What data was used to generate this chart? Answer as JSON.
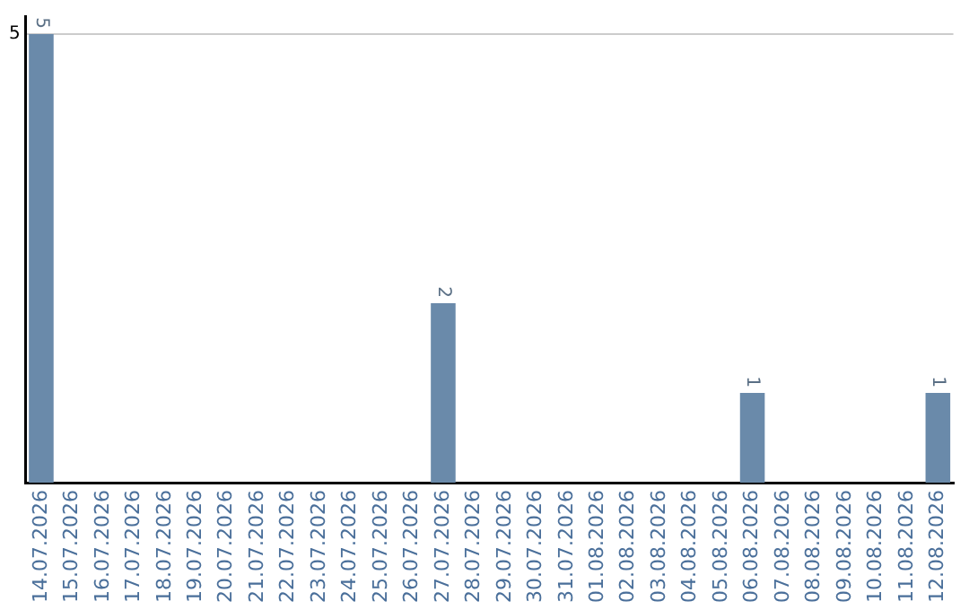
{
  "chart_data": {
    "type": "bar",
    "categories": [
      "14.07.2026",
      "15.07.2026",
      "16.07.2026",
      "17.07.2026",
      "18.07.2026",
      "19.07.2026",
      "20.07.2026",
      "21.07.2026",
      "22.07.2026",
      "23.07.2026",
      "24.07.2026",
      "25.07.2026",
      "26.07.2026",
      "27.07.2026",
      "28.07.2026",
      "29.07.2026",
      "30.07.2026",
      "31.07.2026",
      "01.08.2026",
      "02.08.2026",
      "03.08.2026",
      "04.08.2026",
      "05.08.2026",
      "06.08.2026",
      "07.08.2026",
      "08.08.2026",
      "09.08.2026",
      "10.08.2026",
      "11.08.2026",
      "12.08.2026"
    ],
    "values": [
      5,
      0,
      0,
      0,
      0,
      0,
      0,
      0,
      0,
      0,
      0,
      0,
      0,
      2,
      0,
      0,
      0,
      0,
      0,
      0,
      0,
      0,
      0,
      1,
      0,
      0,
      0,
      0,
      0,
      1
    ],
    "value_labels": [
      "5",
      null,
      null,
      null,
      null,
      null,
      null,
      null,
      null,
      null,
      null,
      null,
      null,
      "2",
      null,
      null,
      null,
      null,
      null,
      null,
      null,
      null,
      null,
      "1",
      null,
      null,
      null,
      null,
      null,
      "1"
    ],
    "color": "#6a8aaa",
    "ylim": [
      0,
      5.2
    ],
    "yticks": [
      5
    ],
    "grid": "y",
    "legend": false
  }
}
